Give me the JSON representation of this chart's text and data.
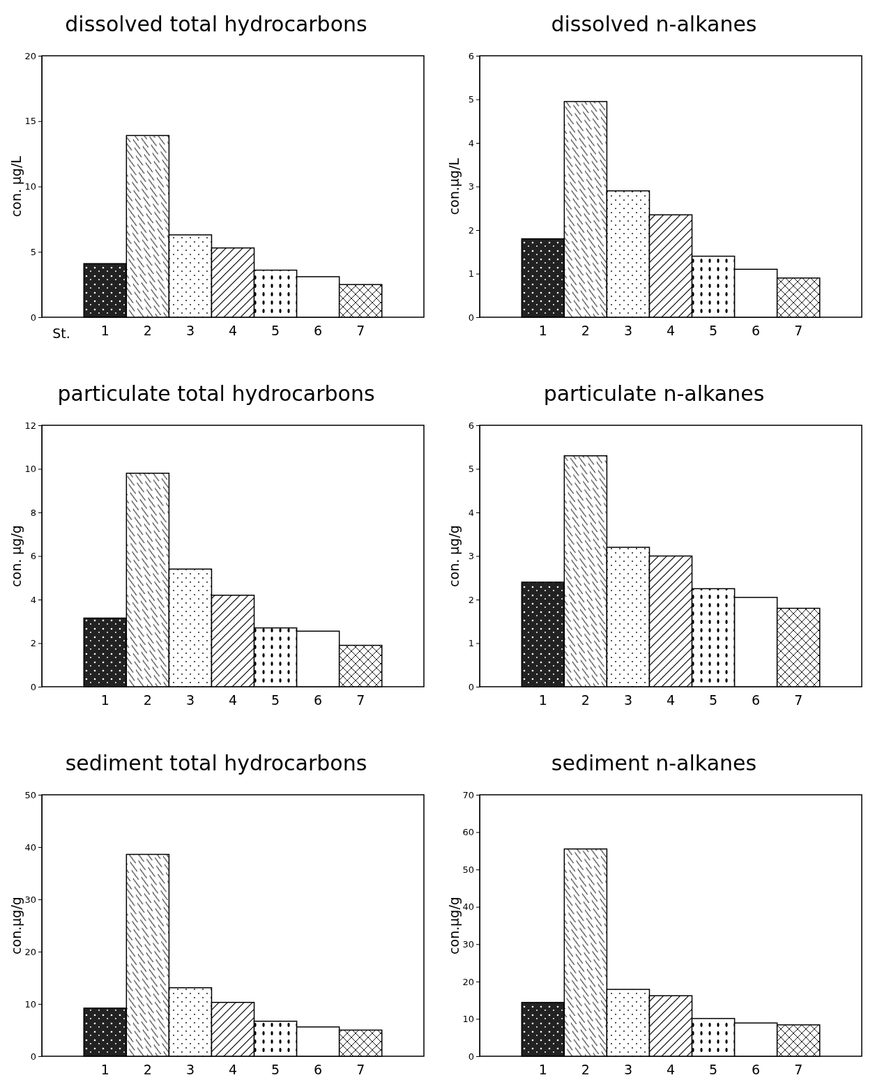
{
  "chart_data": [
    {
      "type": "bar",
      "title": "dissolved total hydrocarbons",
      "ylabel": "con. µg/L",
      "xlabel": "St.",
      "categories": [
        "1",
        "2",
        "3",
        "4",
        "5",
        "6",
        "7"
      ],
      "values": [
        4.1,
        13.9,
        6.3,
        5.3,
        3.6,
        3.1,
        2.5
      ],
      "ylim": [
        0,
        20
      ],
      "yticks": [
        0,
        5,
        10,
        15,
        20
      ]
    },
    {
      "type": "bar",
      "title": "dissolved n-alkanes",
      "ylabel": "con.µg/L",
      "categories": [
        "1",
        "2",
        "3",
        "4",
        "5",
        "6",
        "7"
      ],
      "values": [
        1.8,
        4.95,
        2.9,
        2.35,
        1.4,
        1.1,
        0.9
      ],
      "ylim": [
        0,
        6
      ],
      "yticks": [
        0,
        1,
        2,
        3,
        4,
        5,
        6
      ]
    },
    {
      "type": "bar",
      "title": "particulate total hydrocarbons",
      "ylabel": "con. µg/g",
      "categories": [
        "1",
        "2",
        "3",
        "4",
        "5",
        "6",
        "7"
      ],
      "values": [
        3.15,
        9.8,
        5.4,
        4.2,
        2.7,
        2.55,
        1.9
      ],
      "ylim": [
        0,
        12
      ],
      "yticks": [
        0,
        2,
        4,
        6,
        8,
        10,
        12
      ]
    },
    {
      "type": "bar",
      "title": "particulate n-alkanes",
      "ylabel": "con. µg/g",
      "categories": [
        "1",
        "2",
        "3",
        "4",
        "5",
        "6",
        "7"
      ],
      "values": [
        2.4,
        5.3,
        3.2,
        3.0,
        2.25,
        2.05,
        1.8
      ],
      "ylim": [
        0,
        6
      ],
      "yticks": [
        0,
        1,
        2,
        3,
        4,
        5,
        6
      ]
    },
    {
      "type": "bar",
      "title": "sediment total hydrocarbons",
      "ylabel": "con.µg/g",
      "categories": [
        "1",
        "2",
        "3",
        "4",
        "5",
        "6",
        "7"
      ],
      "values": [
        9.2,
        38.6,
        13.1,
        10.3,
        6.7,
        5.6,
        5.0
      ],
      "ylim": [
        0,
        50
      ],
      "yticks": [
        0,
        10,
        20,
        30,
        40,
        50
      ]
    },
    {
      "type": "bar",
      "title": "sediment n-alkanes",
      "ylabel": "con.µg/g",
      "categories": [
        "1",
        "2",
        "3",
        "4",
        "5",
        "6",
        "7"
      ],
      "values": [
        14.4,
        55.5,
        17.9,
        16.2,
        10.1,
        8.9,
        8.4
      ],
      "ylim": [
        0,
        70
      ],
      "yticks": [
        0,
        10,
        20,
        30,
        40,
        50,
        60,
        70
      ]
    }
  ]
}
